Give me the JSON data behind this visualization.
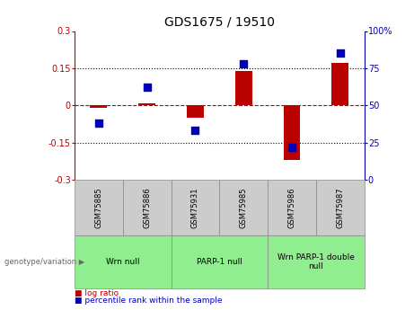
{
  "title": "GDS1675 / 19510",
  "samples": [
    "GSM75885",
    "GSM75886",
    "GSM75931",
    "GSM75985",
    "GSM75986",
    "GSM75987"
  ],
  "log_ratio": [
    -0.01,
    0.01,
    -0.05,
    0.14,
    -0.22,
    0.17
  ],
  "percentile_rank": [
    38,
    62,
    33,
    78,
    22,
    85
  ],
  "ylim_left": [
    -0.3,
    0.3
  ],
  "ylim_right": [
    0,
    100
  ],
  "yticks_left": [
    -0.3,
    -0.15,
    0,
    0.15,
    0.3
  ],
  "yticks_right": [
    0,
    25,
    50,
    75,
    100
  ],
  "bar_color_red": "#bb0000",
  "bar_color_blue": "#0000bb",
  "sample_box_color": "#cccccc",
  "group_color": "#90ee90",
  "groups": [
    {
      "label": "Wrn null",
      "start": 0,
      "end": 2
    },
    {
      "label": "PARP-1 null",
      "start": 2,
      "end": 4
    },
    {
      "label": "Wrn PARP-1 double\nnull",
      "start": 4,
      "end": 6
    }
  ],
  "title_fontsize": 10,
  "tick_fontsize": 7,
  "bar_width": 0.35,
  "percentile_marker_size": 30,
  "legend_label_red": "log ratio",
  "legend_label_blue": "percentile rank within the sample",
  "genotype_label": "genotype/variation ▶"
}
